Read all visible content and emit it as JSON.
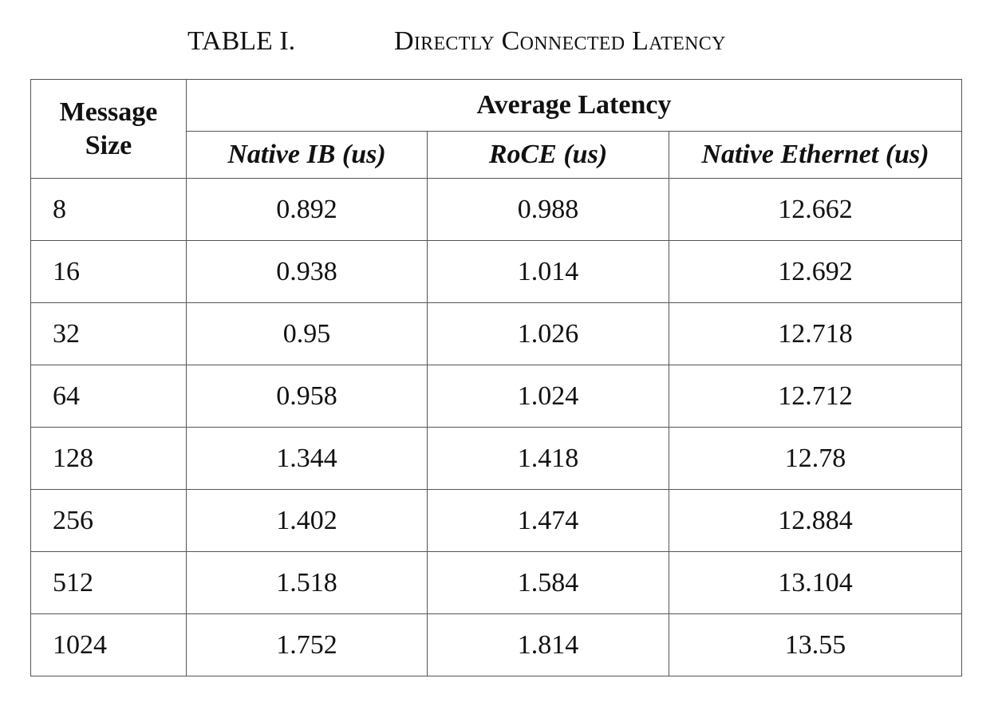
{
  "caption": {
    "label": "TABLE I.",
    "title": "Directly Connected Latency"
  },
  "table": {
    "header_message_size_line1": "Message",
    "header_message_size_line2": "Size",
    "header_group": "Average Latency",
    "columns": [
      "Native IB (us)",
      "RoCE (us)",
      "Native Ethernet (us)"
    ],
    "rows": [
      {
        "size": "8",
        "native_ib": "0.892",
        "roce": "0.988",
        "native_ethernet": "12.662"
      },
      {
        "size": "16",
        "native_ib": "0.938",
        "roce": "1.014",
        "native_ethernet": "12.692"
      },
      {
        "size": "32",
        "native_ib": "0.95",
        "roce": "1.026",
        "native_ethernet": "12.718"
      },
      {
        "size": "64",
        "native_ib": "0.958",
        "roce": "1.024",
        "native_ethernet": "12.712"
      },
      {
        "size": "128",
        "native_ib": "1.344",
        "roce": "1.418",
        "native_ethernet": "12.78"
      },
      {
        "size": "256",
        "native_ib": "1.402",
        "roce": "1.474",
        "native_ethernet": "12.884"
      },
      {
        "size": "512",
        "native_ib": "1.518",
        "roce": "1.584",
        "native_ethernet": "13.104"
      },
      {
        "size": "1024",
        "native_ib": "1.752",
        "roce": "1.814",
        "native_ethernet": "13.55"
      }
    ]
  }
}
